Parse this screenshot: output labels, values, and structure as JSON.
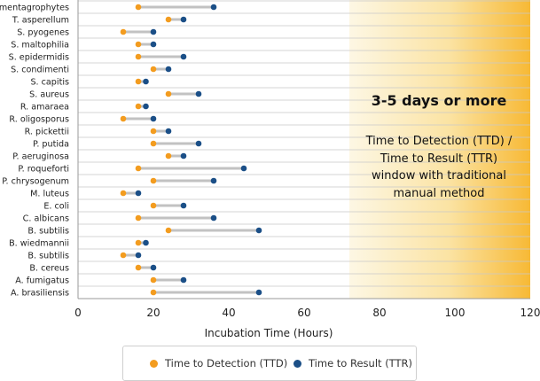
{
  "chart_data": {
    "type": "dumbbell",
    "xlabel": "Incubation Time (Hours)",
    "xlim": [
      0,
      120
    ],
    "xticks": [
      0,
      20,
      40,
      60,
      80,
      100,
      120
    ],
    "categories": [
      "T. mentagrophytes",
      "T. asperellum",
      "S. pyogenes",
      "S. maltophilia",
      "S. epidermidis",
      "S. condimenti",
      "S. capitis",
      "S. aureus",
      "R. amaraea",
      "R. oligosporus",
      "R. pickettii",
      "P. putida",
      "P. aeruginosa",
      "P. roqueforti",
      "P. chrysogenum",
      "M. luteus",
      "E. coli",
      "C. albicans",
      "B. subtilis",
      "B. wiedmannii",
      "B. subtilis",
      "B. cereus",
      "A. fumigatus",
      "A. brasiliensis"
    ],
    "series": [
      {
        "name": "Time to Detection (TTD)",
        "color": "#f39c1f",
        "values": [
          16,
          24,
          12,
          16,
          16,
          20,
          16,
          24,
          16,
          12,
          20,
          20,
          24,
          16,
          20,
          12,
          20,
          16,
          24,
          16,
          12,
          16,
          20,
          20
        ]
      },
      {
        "name": "Time to Result (TTR)",
        "color": "#1b4f87",
        "values": [
          36,
          28,
          20,
          20,
          28,
          24,
          18,
          32,
          18,
          20,
          24,
          32,
          28,
          44,
          36,
          16,
          28,
          36,
          48,
          18,
          16,
          20,
          28,
          48
        ]
      }
    ],
    "shaded_region": {
      "from": 72,
      "to": 120
    },
    "annotation": {
      "title": "3-5 days or more",
      "lines": [
        "Time to Detection (TTD) /",
        "Time to Result (TTR)",
        "window with traditional",
        "manual method"
      ]
    },
    "legend": [
      "Time to Detection (TTD)",
      "Time to Result (TTR)"
    ]
  }
}
